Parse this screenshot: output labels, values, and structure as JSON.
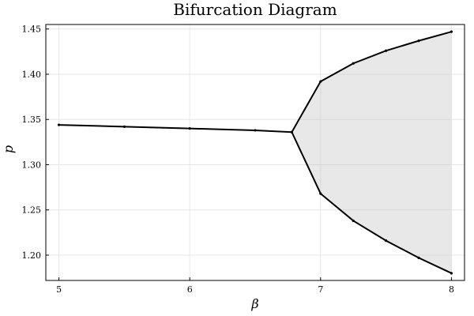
{
  "chart_data": {
    "type": "scatter",
    "title": "Bifurcation Diagram",
    "xlabel": "β",
    "ylabel": "p",
    "xlim": [
      4.9,
      8.1
    ],
    "ylim": [
      1.172,
      1.455
    ],
    "x_ticks": [
      5,
      6,
      7,
      8
    ],
    "y_ticks": [
      1.2,
      1.25,
      1.3,
      1.35,
      1.4,
      1.45
    ],
    "x_tick_labels": [
      "5",
      "6",
      "7",
      "8"
    ],
    "y_tick_labels": [
      "1.20",
      "1.25",
      "1.30",
      "1.35",
      "1.40",
      "1.45"
    ],
    "grid": true,
    "legend": "none",
    "series_color": "#000000",
    "series": [
      {
        "values": [
          {
            "x": 5.0,
            "y": 1.344
          },
          {
            "x": 5.5,
            "y": 1.342
          },
          {
            "x": 6.0,
            "y": 1.34
          },
          {
            "x": 6.5,
            "y": 1.338
          },
          {
            "x": 6.78,
            "y": 1.336
          },
          {
            "x": 7.0,
            "y": 1.392
          },
          {
            "x": 7.25,
            "y": 1.412
          },
          {
            "x": 7.5,
            "y": 1.426
          },
          {
            "x": 7.75,
            "y": 1.437
          },
          {
            "x": 8.0,
            "y": 1.447
          }
        ]
      },
      {
        "values": [
          {
            "x": 6.78,
            "y": 1.336
          },
          {
            "x": 7.0,
            "y": 1.268
          },
          {
            "x": 7.25,
            "y": 1.238
          },
          {
            "x": 7.5,
            "y": 1.216
          },
          {
            "x": 7.75,
            "y": 1.197
          },
          {
            "x": 8.0,
            "y": 1.18
          }
        ]
      }
    ]
  }
}
